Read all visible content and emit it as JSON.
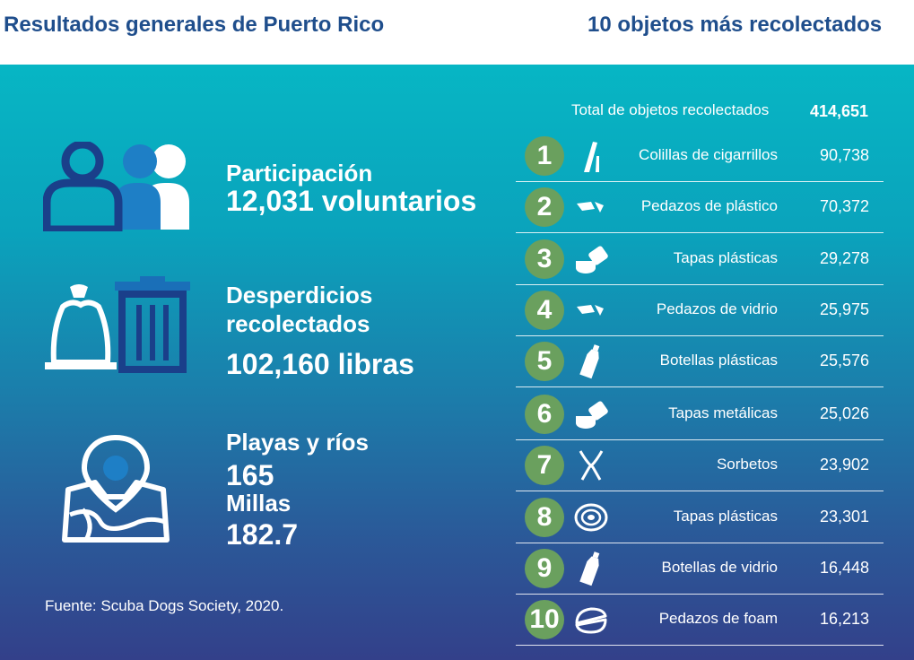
{
  "headers": {
    "left_title": "Resultados generales de Puerto Rico",
    "right_title": "10 objetos más recolectados"
  },
  "stats": {
    "participation": {
      "label": "Participación",
      "value": "12,031 voluntarios",
      "icon": "people-icon"
    },
    "waste": {
      "label_line1": "Desperdicios",
      "label_line2": "recolectados",
      "value": "102,160 libras",
      "icon": "trash-bag-bin-icon"
    },
    "beaches": {
      "label": "Playas y ríos",
      "count": "165",
      "miles_label": "Millas",
      "miles_value": "182.7",
      "icon": "map-pin-icon"
    }
  },
  "source": "Fuente: Scuba Dogs Society, 2020.",
  "total": {
    "label": "Total de objetos recolectados",
    "value": "414,651"
  },
  "items": [
    {
      "rank": "1",
      "name": "Colillas de cigarrillos",
      "count": "90,738",
      "icon": "cigarette-icon"
    },
    {
      "rank": "2",
      "name": "Pedazos de plástico",
      "count": "70,372",
      "icon": "fragment-icon"
    },
    {
      "rank": "3",
      "name": "Tapas plásticas",
      "count": "29,278",
      "icon": "bottle-cap-icon"
    },
    {
      "rank": "4",
      "name": "Pedazos de vidrio",
      "count": "25,975",
      "icon": "fragment-icon"
    },
    {
      "rank": "5",
      "name": "Botellas plásticas",
      "count": "25,576",
      "icon": "bottle-icon"
    },
    {
      "rank": "6",
      "name": "Tapas metálicas",
      "count": "25,026",
      "icon": "bottle-cap-icon"
    },
    {
      "rank": "7",
      "name": "Sorbetos",
      "count": "23,902",
      "icon": "straws-icon"
    },
    {
      "rank": "8",
      "name": "Tapas plásticas",
      "count": "23,301",
      "icon": "lid-icon"
    },
    {
      "rank": "9",
      "name": "Botellas de vidrio",
      "count": "16,448",
      "icon": "bottle-icon"
    },
    {
      "rank": "10",
      "name": "Pedazos de foam",
      "count": "16,213",
      "icon": "foam-container-icon"
    }
  ],
  "colors": {
    "header_text": "#1f4e8c",
    "badge": "#6aa05e",
    "gradient_top": "#07b6c4",
    "gradient_bottom": "#33408a"
  }
}
